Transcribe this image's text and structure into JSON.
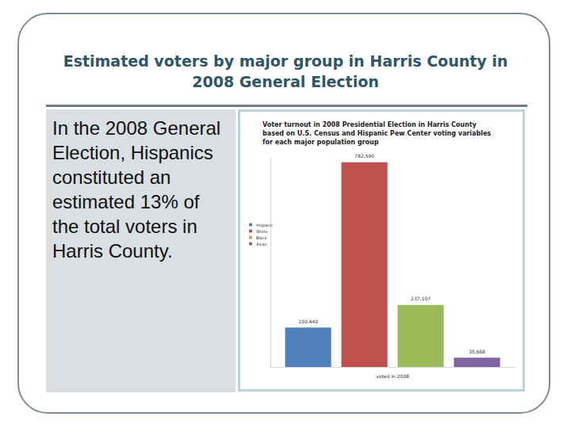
{
  "slide": {
    "title": "Estimated voters by major group in Harris County in 2008 General Election",
    "text": "In the 2008 General Election, Hispanics constituted an estimated 13% of the total voters in Harris County."
  },
  "chart_data": {
    "type": "bar",
    "title": "Voter turnout in 2008 Presidential Election in Harris County based on U.S. Census and Hispanic Pew Center voting variables for each major population group",
    "categories": [
      "voted in 2008"
    ],
    "series": [
      {
        "name": "Hispanic",
        "color": "#4f81bd",
        "values": [
          150440
        ],
        "value_labels": [
          "150,440"
        ]
      },
      {
        "name": "White",
        "color": "#c0504d",
        "values": [
          782590
        ],
        "value_labels": [
          "782,590"
        ]
      },
      {
        "name": "Black",
        "color": "#9bbb59",
        "values": [
          237107
        ],
        "value_labels": [
          "237,107"
        ]
      },
      {
        "name": "Asian",
        "color": "#8064a2",
        "values": [
          35668
        ],
        "value_labels": [
          "35,668"
        ]
      }
    ],
    "ylim": [
      0,
      800000
    ],
    "grid": false,
    "legend": "left",
    "data_labels": true,
    "tick_labels": "x"
  }
}
